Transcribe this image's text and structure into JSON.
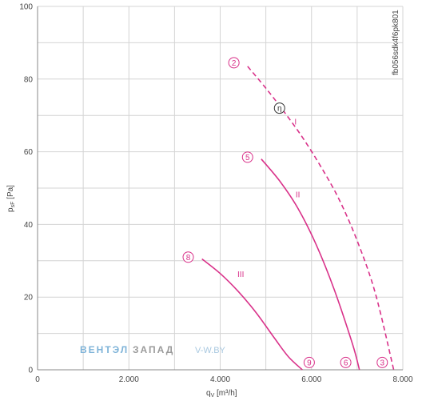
{
  "chart_data": {
    "type": "line",
    "title": "",
    "xlabel": "qV [m³/h]",
    "xlabel_main": "q",
    "xlabel_sub": "V",
    "xlabel_unit": " [m³/h]",
    "ylabel": "psF [Pa]",
    "ylabel_main": "p",
    "ylabel_sub": "sF",
    "ylabel_unit": " [Pa]",
    "xlim": [
      0,
      8000
    ],
    "ylim": [
      0,
      100
    ],
    "x_ticks": [
      0,
      1000,
      2000,
      3000,
      4000,
      5000,
      6000,
      7000,
      8000
    ],
    "x_tick_labels": [
      "0",
      "",
      "2.000",
      "",
      "4.000",
      "",
      "6.000",
      "",
      "8.000"
    ],
    "y_ticks": [
      0,
      10,
      20,
      30,
      40,
      50,
      60,
      70,
      80,
      90,
      100
    ],
    "y_tick_labels": [
      "0",
      "",
      "20",
      "",
      "40",
      "",
      "60",
      "",
      "80",
      "",
      "100"
    ],
    "grid": true,
    "line_color": "#d9328a",
    "series": [
      {
        "name": "I",
        "dashed": true,
        "x": [
          4600,
          5000,
          5400,
          5800,
          6200,
          6600,
          7000,
          7400,
          7800
        ],
        "y": [
          83.5,
          77.5,
          71,
          64,
          56,
          47,
          35.5,
          21,
          0
        ]
      },
      {
        "name": "II",
        "dashed": false,
        "x": [
          4900,
          5300,
          5700,
          6100,
          6500,
          6900,
          7050
        ],
        "y": [
          58,
          52,
          44.5,
          34.5,
          22,
          7,
          0
        ]
      },
      {
        "name": "III",
        "dashed": false,
        "x": [
          3600,
          4000,
          4400,
          4800,
          5200,
          5500,
          5800
        ],
        "y": [
          30.5,
          26.5,
          21.5,
          15.5,
          8.5,
          3.5,
          0
        ]
      }
    ],
    "markers": [
      {
        "label": "2",
        "x": 4300,
        "y": 84.5
      },
      {
        "label": "η",
        "x": 5300,
        "y": 72,
        "neutral": true
      },
      {
        "label": "5",
        "x": 4600,
        "y": 58.5
      },
      {
        "label": "8",
        "x": 3300,
        "y": 31
      },
      {
        "label": "9",
        "x": 5950,
        "y": 2
      },
      {
        "label": "6",
        "x": 6750,
        "y": 2
      },
      {
        "label": "3",
        "x": 7550,
        "y": 2
      }
    ],
    "series_labels": [
      {
        "text": "I",
        "x": 5650,
        "y": 67.5
      },
      {
        "text": "II",
        "x": 5700,
        "y": 47.5
      },
      {
        "text": "III",
        "x": 4450,
        "y": 25.5
      }
    ],
    "code_label": "fb056sdk4f6pk801",
    "watermark": {
      "part1": "ВЕНТЭЛ",
      "part2": "ЗАПАД",
      "part3": "V-W.BY"
    }
  }
}
